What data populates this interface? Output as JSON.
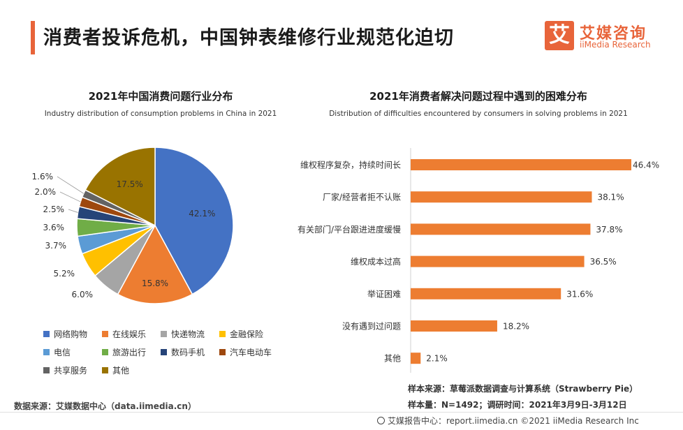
{
  "header": {
    "title": "消费者投诉危机，中国钟表维修行业规范化迫切",
    "logo_mark": "艾",
    "logo_cn": "艾媒咨询",
    "logo_en": "iiMedia Research"
  },
  "colors": {
    "accent": "#e8643a",
    "bar": "#ed7d31"
  },
  "chart_data": [
    {
      "type": "pie",
      "title": "2021年中国消费问题行业分布",
      "subtitle": "Industry distribution of consumption problems in China in 2021",
      "categories": [
        "网络购物",
        "在线娱乐",
        "快递物流",
        "金融保险",
        "电信",
        "旅游出行",
        "数码手机",
        "汽车电动车",
        "共享服务",
        "其他"
      ],
      "values": [
        42.1,
        15.8,
        6.0,
        5.2,
        3.7,
        3.6,
        2.5,
        2.0,
        1.6,
        17.5
      ],
      "labels": [
        "42.1%",
        "15.8%",
        "6.0%",
        "5.2%",
        "3.7%",
        "3.6%",
        "2.5%",
        "2.0%",
        "1.6%",
        "17.5%"
      ],
      "colors": [
        "#4472c4",
        "#ed7d31",
        "#a5a5a5",
        "#ffc000",
        "#5b9bd5",
        "#70ad47",
        "#264478",
        "#9e480e",
        "#636363",
        "#997300"
      ],
      "legend_position": "bottom"
    },
    {
      "type": "bar",
      "orientation": "horizontal",
      "title": "2021年消费者解决问题过程中遇到的困难分布",
      "subtitle": "Distribution of difficulties encountered by consumers in solving problems in 2021",
      "categories": [
        "维权程序复杂，持续时间长",
        "厂家/经营者拒不认账",
        "有关部门/平台跟进进度缓慢",
        "维权成本过高",
        "举证困难",
        "没有遇到过问题",
        "其他"
      ],
      "values": [
        46.4,
        38.1,
        37.8,
        36.5,
        31.6,
        18.2,
        2.1
      ],
      "labels": [
        "46.4%",
        "38.1%",
        "37.8%",
        "36.5%",
        "31.6%",
        "18.2%",
        "2.1%"
      ],
      "xlim": [
        0,
        46.4
      ]
    }
  ],
  "notes": {
    "sample_source": "样本来源：草莓派数据调查与计算系统（Strawberry Pie）",
    "sample_size": "样本量：N=1492；调研时间：2021年3月9日-3月12日",
    "data_source": "数据来源：艾媒数据中心（data.iimedia.cn）",
    "footer": "艾媒报告中心：report.iimedia.cn   ©2021  iiMedia Research  Inc"
  }
}
